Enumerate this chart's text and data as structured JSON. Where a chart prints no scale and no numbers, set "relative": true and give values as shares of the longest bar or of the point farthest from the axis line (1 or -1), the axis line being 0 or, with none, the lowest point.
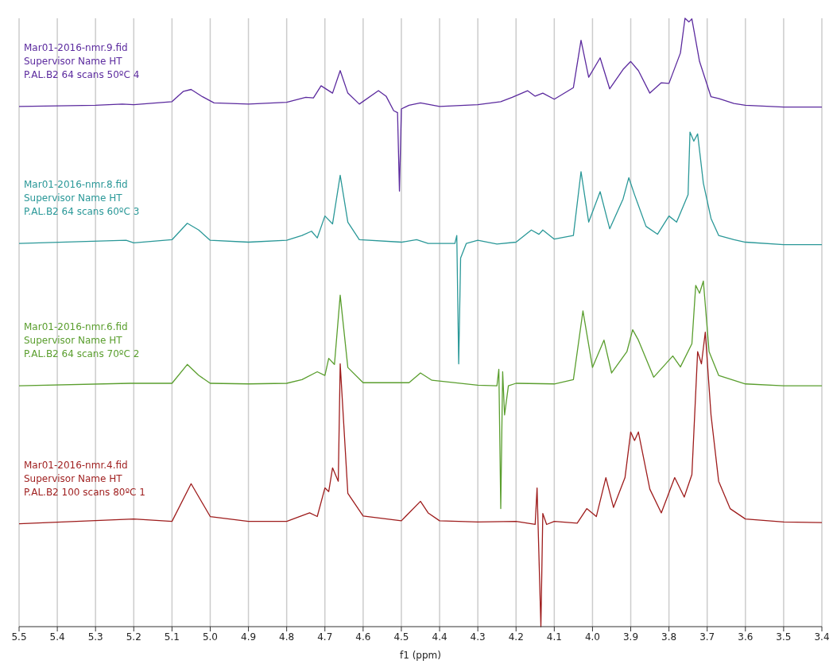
{
  "chart_data": {
    "type": "line",
    "relative": true,
    "xlabel": "f1 (ppm)",
    "xlim": [
      5.5,
      3.4
    ],
    "xticks": [
      5.5,
      5.4,
      5.3,
      5.2,
      5.1,
      {
        "value": 5,
        "label": "5.0"
      },
      4.9,
      4.8,
      4.7,
      4.6,
      4.5,
      4.4,
      4.3,
      4.2,
      4.1,
      {
        "value": 4,
        "label": "4.0"
      },
      3.9,
      3.8,
      3.7,
      3.6,
      3.5,
      3.4
    ],
    "grid": "x",
    "legend": false,
    "line_style": "solid",
    "series": [
      {
        "name": "Mar01-2016-nmr.9.fid\nSupervisor Name HT\nP.AL.B2 64 scans 50ºC 4",
        "color": "#5b2a9e",
        "x": [
          5.5,
          5.3,
          5.23,
          5.2,
          5.1,
          5.07,
          5.05,
          5.02,
          4.99,
          4.9,
          4.8,
          4.75,
          4.73,
          4.71,
          4.68,
          4.66,
          4.64,
          4.61,
          4.56,
          4.54,
          4.52,
          4.51,
          4.505,
          4.5,
          4.48,
          4.45,
          4.4,
          4.3,
          4.24,
          4.21,
          4.17,
          4.15,
          4.13,
          4.1,
          4.05,
          4.03,
          4.01,
          3.98,
          3.955,
          3.92,
          3.9,
          3.88,
          3.85,
          3.82,
          3.8,
          3.77,
          3.758,
          3.748,
          3.74,
          3.72,
          3.69,
          3.67,
          3.63,
          3.6,
          3.5,
          3.4
        ],
        "values": [
          0.855,
          0.857,
          0.859,
          0.858,
          0.863,
          0.88,
          0.883,
          0.871,
          0.861,
          0.859,
          0.862,
          0.87,
          0.869,
          0.889,
          0.877,
          0.914,
          0.877,
          0.859,
          0.881,
          0.872,
          0.848,
          0.845,
          0.716,
          0.851,
          0.857,
          0.861,
          0.855,
          0.858,
          0.863,
          0.87,
          0.881,
          0.872,
          0.877,
          0.867,
          0.886,
          0.964,
          0.903,
          0.935,
          0.884,
          0.916,
          0.929,
          0.914,
          0.877,
          0.894,
          0.893,
          0.943,
          1,
          0.994,
          0.999,
          0.929,
          0.871,
          0.868,
          0.86,
          0.857,
          0.854,
          0.854
        ]
      },
      {
        "name": "Mar01-2016-nmr.8.fid\nSupervisor Name HT\nP.AL.B2 64 scans 60ºC 3",
        "color": "#2a9898",
        "x": [
          5.5,
          5.22,
          5.2,
          5.1,
          5.06,
          5.03,
          5.0,
          4.9,
          4.8,
          4.76,
          4.735,
          4.72,
          4.7,
          4.68,
          4.66,
          4.64,
          4.61,
          4.5,
          4.46,
          4.43,
          4.36,
          4.355,
          4.35,
          4.345,
          4.33,
          4.3,
          4.25,
          4.2,
          4.16,
          4.14,
          4.13,
          4.1,
          4.05,
          4.03,
          4.01,
          3.98,
          3.955,
          3.92,
          3.905,
          3.89,
          3.86,
          3.83,
          3.8,
          3.78,
          3.75,
          3.745,
          3.735,
          3.725,
          3.71,
          3.69,
          3.67,
          3.63,
          3.6,
          3.5,
          3.4
        ],
        "values": [
          0.63,
          0.635,
          0.631,
          0.636,
          0.663,
          0.652,
          0.635,
          0.632,
          0.635,
          0.643,
          0.65,
          0.639,
          0.675,
          0.662,
          0.742,
          0.665,
          0.636,
          0.632,
          0.636,
          0.63,
          0.63,
          0.643,
          0.432,
          0.606,
          0.63,
          0.635,
          0.629,
          0.632,
          0.652,
          0.645,
          0.652,
          0.637,
          0.643,
          0.748,
          0.665,
          0.715,
          0.654,
          0.703,
          0.738,
          0.71,
          0.658,
          0.645,
          0.675,
          0.665,
          0.71,
          0.813,
          0.798,
          0.81,
          0.729,
          0.671,
          0.643,
          0.636,
          0.632,
          0.628,
          0.628
        ]
      },
      {
        "name": "Mar01-2016-nmr.6.fid\nSupervisor Name HT\nP.AL.B2 64 scans 70ºC 2",
        "color": "#5a9e2e",
        "x": [
          5.5,
          5.21,
          5.1,
          5.06,
          5.03,
          5.0,
          4.9,
          4.8,
          4.76,
          4.72,
          4.7,
          4.69,
          4.675,
          4.66,
          4.64,
          4.6,
          4.48,
          4.45,
          4.42,
          4.3,
          4.25,
          4.245,
          4.24,
          4.235,
          4.23,
          4.22,
          4.2,
          4.1,
          4.05,
          4.025,
          4.0,
          3.97,
          3.95,
          3.91,
          3.895,
          3.88,
          3.84,
          3.79,
          3.77,
          3.74,
          3.73,
          3.72,
          3.71,
          3.695,
          3.67,
          3.6,
          3.5,
          3.4
        ],
        "values": [
          0.396,
          0.4,
          0.4,
          0.431,
          0.413,
          0.4,
          0.399,
          0.4,
          0.406,
          0.419,
          0.413,
          0.441,
          0.431,
          0.545,
          0.426,
          0.401,
          0.401,
          0.417,
          0.405,
          0.397,
          0.396,
          0.423,
          0.194,
          0.419,
          0.348,
          0.396,
          0.4,
          0.399,
          0.406,
          0.519,
          0.426,
          0.471,
          0.417,
          0.452,
          0.488,
          0.471,
          0.41,
          0.445,
          0.427,
          0.465,
          0.561,
          0.548,
          0.568,
          0.452,
          0.413,
          0.399,
          0.396,
          0.396
        ]
      },
      {
        "name": "Mar01-2016-nmr.4.fid\nSupervisor Name HT\nP.AL.B2 100 scans 80ºC 1",
        "color": "#9e1c1c",
        "x": [
          5.5,
          5.2,
          5.1,
          5.05,
          5.0,
          4.9,
          4.8,
          4.74,
          4.72,
          4.7,
          4.69,
          4.68,
          4.665,
          4.66,
          4.64,
          4.6,
          4.5,
          4.45,
          4.43,
          4.4,
          4.3,
          4.2,
          4.15,
          4.145,
          4.135,
          4.13,
          4.12,
          4.1,
          4.04,
          4.015,
          3.99,
          3.965,
          3.945,
          3.915,
          3.9,
          3.89,
          3.88,
          3.85,
          3.82,
          3.785,
          3.76,
          3.74,
          3.725,
          3.715,
          3.705,
          3.69,
          3.67,
          3.64,
          3.6,
          3.5,
          3.4
        ],
        "values": [
          0.169,
          0.177,
          0.173,
          0.235,
          0.181,
          0.173,
          0.173,
          0.187,
          0.181,
          0.228,
          0.222,
          0.261,
          0.239,
          0.432,
          0.219,
          0.182,
          0.174,
          0.206,
          0.187,
          0.174,
          0.172,
          0.173,
          0.168,
          0.228,
          0,
          0.186,
          0.168,
          0.173,
          0.17,
          0.194,
          0.181,
          0.245,
          0.196,
          0.245,
          0.32,
          0.306,
          0.32,
          0.226,
          0.187,
          0.245,
          0.213,
          0.25,
          0.452,
          0.432,
          0.484,
          0.348,
          0.239,
          0.194,
          0.177,
          0.172,
          0.171
        ]
      }
    ]
  }
}
